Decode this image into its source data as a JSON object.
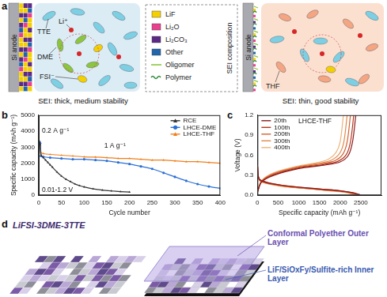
{
  "panel_labels": [
    "a",
    "b",
    "c",
    "d"
  ],
  "diagram_a": {
    "left": {
      "anode": "Si anode",
      "molecules": [
        {
          "label": "TTE",
          "color": "#7dd0e3"
        },
        {
          "label": "DME",
          "color": "#8cc63f"
        },
        {
          "label": "FSI⁻",
          "color": "#f5d000"
        }
      ],
      "ion": {
        "label": "Li⁺",
        "color": "#d62728"
      },
      "caption": "SEI: thick, medium stability"
    },
    "legend": {
      "title": "SEI composition",
      "items": [
        {
          "label": "LiF",
          "color": "#f5d000",
          "marker": "square"
        },
        {
          "label": "Li₂O",
          "color": "#e8408f",
          "marker": "square"
        },
        {
          "label": "Li₂CO₃",
          "color": "#5b2a86",
          "marker": "square"
        },
        {
          "label": "Other",
          "color": "#2166ac",
          "marker": "square"
        },
        {
          "label": "Oligomer",
          "color": "#8cc63f",
          "line_style": "solid"
        },
        {
          "label": "Polymer",
          "color": "#2e8b3a",
          "line_style": "wavy"
        }
      ]
    },
    "right": {
      "anode": "Si anode",
      "molecules": [
        {
          "label": "THF",
          "color": "#f4a582"
        }
      ],
      "caption": "SEI: thin, good stability"
    }
  },
  "chart_data": [
    {
      "type": "line",
      "x_label": "Cycle number",
      "y_label": "Specific capacity (mAh g⁻¹)",
      "xlim": [
        0,
        400
      ],
      "xticks": [
        0,
        50,
        100,
        150,
        200,
        250,
        300,
        350,
        400
      ],
      "ylim": [
        0,
        5000
      ],
      "yticks": [
        0,
        1000,
        2000,
        3000,
        4000,
        5000
      ],
      "grid": false,
      "legend": "upper right",
      "annotations": [
        "0.2 A g⁻¹",
        "1 A g⁻¹",
        "0.01-1.2 V"
      ],
      "series": [
        {
          "name": "RCE",
          "color": "#333333",
          "marker": "triangle",
          "x": [
            1,
            2,
            3,
            5,
            10,
            15,
            20,
            25,
            30,
            40,
            50,
            60,
            70,
            80,
            90,
            100,
            120,
            140,
            160,
            180,
            200
          ],
          "values": [
            3300,
            3250,
            3150,
            2500,
            2350,
            2200,
            2050,
            1900,
            1750,
            1450,
            1200,
            1000,
            850,
            700,
            600,
            520,
            400,
            320,
            270,
            230,
            200
          ]
        },
        {
          "name": "LHCE-DME",
          "color": "#2a6fd6",
          "marker": "circle",
          "x": [
            1,
            2,
            3,
            5,
            10,
            25,
            50,
            75,
            100,
            125,
            150,
            175,
            200,
            225,
            250,
            275,
            300,
            325,
            350,
            375,
            400
          ],
          "values": [
            3350,
            3300,
            3250,
            2450,
            2400,
            2350,
            2300,
            2250,
            2250,
            2200,
            2150,
            2050,
            1950,
            1800,
            1650,
            1400,
            1150,
            900,
            700,
            550,
            430
          ]
        },
        {
          "name": "LHCE-THF",
          "color": "#f07f1a",
          "marker": "triangle",
          "x": [
            1,
            2,
            3,
            5,
            10,
            25,
            50,
            75,
            100,
            125,
            150,
            175,
            200,
            225,
            250,
            275,
            300,
            325,
            350,
            375,
            400
          ],
          "values": [
            3400,
            3350,
            3300,
            2650,
            2600,
            2550,
            2500,
            2450,
            2400,
            2380,
            2350,
            2300,
            2300,
            2250,
            2200,
            2200,
            2150,
            2100,
            2100,
            2050,
            2000
          ]
        }
      ]
    },
    {
      "type": "line",
      "x_label": "Specific capacity (mAh g⁻¹)",
      "y_label": "Voltage (V)",
      "xlim": [
        0,
        3000
      ],
      "xticks": [
        0,
        500,
        1000,
        1500,
        2000,
        2500
      ],
      "ylim": [
        0,
        1.2
      ],
      "yticks": [
        {
          "value": 0,
          "label": "0.0"
        },
        0.3,
        0.6,
        0.9,
        1.2
      ],
      "grid": false,
      "legend": "upper left",
      "annotations": [
        "LHCE-THF"
      ],
      "series": [
        {
          "name": "20th",
          "color": "#8b1a1a",
          "x": [
            0,
            40,
            200,
            600,
            1200,
            1800,
            2300,
            2480,
            null,
            0,
            100,
            400,
            1000,
            1600,
            2000,
            2200,
            2300,
            2380
          ],
          "values": [
            0.45,
            0.25,
            0.2,
            0.15,
            0.11,
            0.08,
            0.04,
            0.01,
            null,
            0.05,
            0.2,
            0.3,
            0.4,
            0.45,
            0.5,
            0.6,
            0.8,
            1.2
          ]
        },
        {
          "name": "100th",
          "color": "#b5361f",
          "x": [
            0,
            40,
            200,
            600,
            1200,
            1800,
            2280,
            2450,
            null,
            0,
            100,
            400,
            1000,
            1600,
            1950,
            2150,
            2250,
            2330
          ],
          "values": [
            0.45,
            0.24,
            0.19,
            0.15,
            0.11,
            0.08,
            0.04,
            0.01,
            null,
            0.05,
            0.2,
            0.31,
            0.41,
            0.46,
            0.51,
            0.61,
            0.8,
            1.2
          ]
        },
        {
          "name": "200th",
          "color": "#d2602e",
          "x": [
            0,
            40,
            200,
            600,
            1200,
            1800,
            2240,
            2400,
            null,
            0,
            100,
            400,
            1000,
            1550,
            1880,
            2070,
            2170,
            2250
          ],
          "values": [
            0.45,
            0.24,
            0.19,
            0.14,
            0.1,
            0.07,
            0.04,
            0.01,
            null,
            0.05,
            0.21,
            0.32,
            0.42,
            0.47,
            0.52,
            0.62,
            0.8,
            1.2
          ]
        },
        {
          "name": "300th",
          "color": "#e0894a",
          "x": [
            0,
            40,
            200,
            600,
            1200,
            1750,
            2200,
            2350,
            null,
            0,
            100,
            400,
            1000,
            1500,
            1800,
            1990,
            2090,
            2170
          ],
          "values": [
            0.45,
            0.23,
            0.18,
            0.14,
            0.1,
            0.07,
            0.04,
            0.01,
            null,
            0.05,
            0.21,
            0.33,
            0.43,
            0.48,
            0.53,
            0.63,
            0.8,
            1.2
          ]
        },
        {
          "name": "400th",
          "color": "#eeb27a",
          "x": [
            0,
            40,
            200,
            600,
            1200,
            1700,
            2150,
            2300,
            null,
            0,
            100,
            400,
            1000,
            1450,
            1720,
            1900,
            2000,
            2080
          ],
          "values": [
            0.45,
            0.23,
            0.18,
            0.13,
            0.1,
            0.07,
            0.04,
            0.01,
            null,
            0.05,
            0.22,
            0.34,
            0.44,
            0.49,
            0.54,
            0.64,
            0.8,
            1.2
          ]
        }
      ]
    }
  ],
  "diagram_d": {
    "title": "LiFSI-3DME-3TTE",
    "outer_layer": "Conformal Polyether Outer Layer",
    "inner_layer": "LiF/SiOxFy/Sulfite-rich Inner Layer"
  }
}
